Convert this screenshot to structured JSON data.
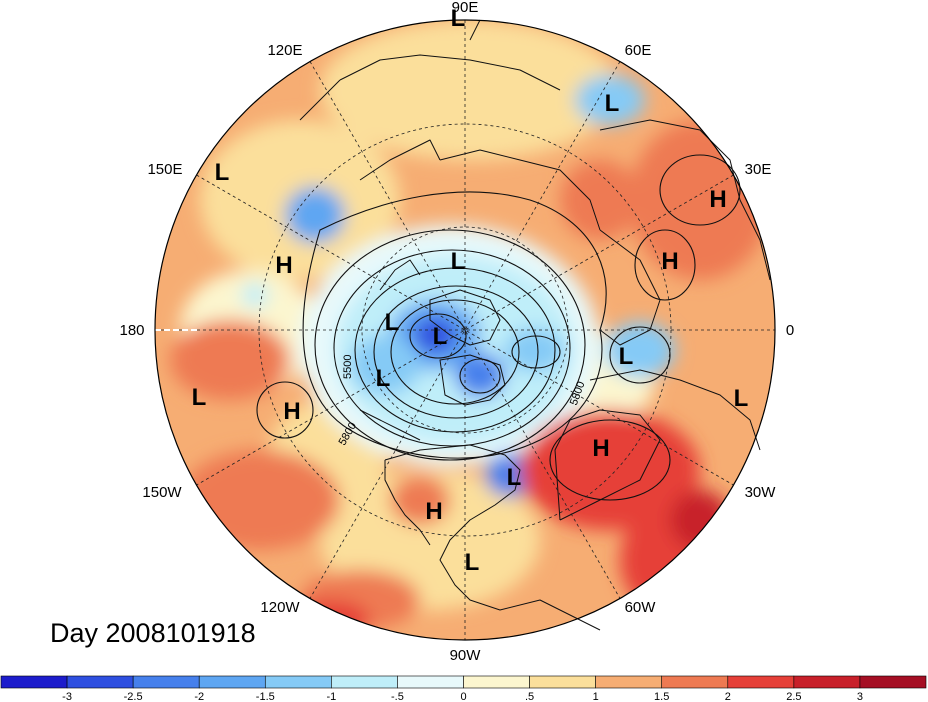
{
  "title": "Day 2008101918",
  "longitude_labels": [
    "90E",
    "60E",
    "30E",
    "0",
    "30W",
    "60W",
    "90W",
    "120W",
    "150W",
    "180",
    "150E",
    "120E"
  ],
  "pressure_centers": [
    {
      "label": "L",
      "lon_lat": [
        90,
        40
      ]
    },
    {
      "label": "L",
      "lon_lat": [
        62,
        52
      ]
    },
    {
      "label": "L",
      "lon_lat": [
        150,
        35
      ]
    },
    {
      "label": "H",
      "lon_lat": [
        40,
        42
      ]
    },
    {
      "label": "H",
      "lon_lat": [
        155,
        55
      ]
    },
    {
      "label": "L",
      "lon_lat": [
        95,
        75
      ]
    },
    {
      "label": "H",
      "lon_lat": [
        30,
        55
      ]
    },
    {
      "label": "L",
      "lon_lat": [
        160,
        82
      ]
    },
    {
      "label": "L",
      "lon_lat": [
        150,
        85
      ]
    },
    {
      "label": "L",
      "lon_lat": [
        0,
        65
      ]
    },
    {
      "label": "L",
      "lon_lat": [
        -150,
        70
      ]
    },
    {
      "label": "L",
      "lon_lat": [
        -165,
        38
      ]
    },
    {
      "label": "H",
      "lon_lat": [
        -150,
        50
      ]
    },
    {
      "label": "L",
      "lon_lat": [
        -10,
        30
      ]
    },
    {
      "label": "H",
      "lon_lat": [
        -40,
        45
      ]
    },
    {
      "label": "L",
      "lon_lat": [
        -70,
        42
      ]
    },
    {
      "label": "H",
      "lon_lat": [
        -95,
        32
      ]
    },
    {
      "label": "L",
      "lon_lat": [
        -90,
        20
      ]
    }
  ],
  "contour_labels": [
    "5500",
    "5800",
    "5800"
  ],
  "colorbar": {
    "ticks": [
      "-3",
      "-2.5",
      "-2",
      "-1.5",
      "-1",
      "-.5",
      "0",
      ".5",
      "1",
      "1.5",
      "2",
      "2.5",
      "3"
    ],
    "colors": [
      "#1c1ccc",
      "#2e4fe0",
      "#4680ec",
      "#5ea6f2",
      "#85caf6",
      "#bfeef9",
      "#e8f9fb",
      "#fcf6cf",
      "#fbdf9b",
      "#f6ad73",
      "#ee7a52",
      "#e64038",
      "#c8202a",
      "#a50f24"
    ]
  }
}
